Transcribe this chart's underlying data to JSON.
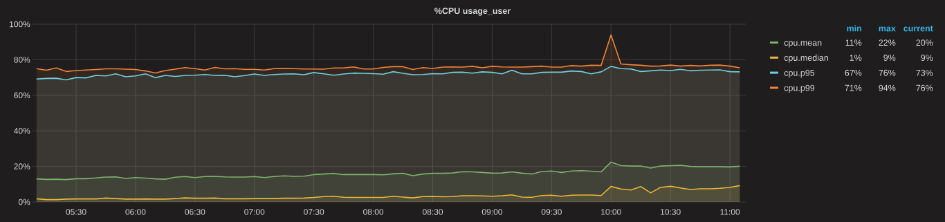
{
  "chart_data": {
    "type": "area",
    "title": "%CPU usage_user",
    "x": [
      5.1667,
      5.25,
      5.3333,
      5.4167,
      5.5,
      5.5833,
      5.6667,
      5.75,
      5.8333,
      5.9167,
      6,
      6.0833,
      6.1667,
      6.25,
      6.3333,
      6.4167,
      6.5,
      6.5833,
      6.6667,
      6.75,
      6.8333,
      6.9167,
      7,
      7.0833,
      7.1667,
      7.25,
      7.3333,
      7.4167,
      7.5,
      7.5833,
      7.6667,
      7.75,
      7.8333,
      7.9167,
      8,
      8.0833,
      8.1667,
      8.25,
      8.3333,
      8.4167,
      8.5,
      8.5833,
      8.6667,
      8.75,
      8.8333,
      8.9167,
      9,
      9.0833,
      9.1667,
      9.25,
      9.3333,
      9.4167,
      9.5,
      9.5833,
      9.6667,
      9.75,
      9.8333,
      9.9167,
      10,
      10.0833,
      10.1667,
      10.25,
      10.3333,
      10.4167,
      10.5,
      10.5833,
      10.6667,
      10.75,
      10.8333,
      10.9167,
      11,
      11.0833
    ],
    "series": [
      {
        "name": "cpu.mean",
        "color": "#7eb26d",
        "values": [
          13.0,
          12.7,
          12.8,
          12.6,
          13.1,
          13.1,
          13.5,
          14.0,
          14.1,
          13.2,
          13.7,
          13.4,
          13.0,
          12.8,
          13.9,
          14.3,
          13.7,
          14.3,
          14.4,
          14.1,
          14.0,
          14.0,
          14.3,
          13.7,
          14.3,
          14.7,
          14.4,
          14.5,
          15.4,
          15.7,
          16.0,
          15.4,
          15.4,
          15.4,
          15.4,
          15.3,
          15.8,
          16.1,
          14.8,
          15.7,
          16.1,
          16.1,
          16.3,
          17.0,
          16.9,
          16.6,
          16.2,
          16.3,
          16.9,
          16.2,
          15.7,
          17.1,
          17.4,
          16.6,
          17.4,
          17.6,
          17.3,
          16.9,
          22.4,
          20.4,
          20.2,
          20.2,
          19.1,
          20.2,
          20.4,
          20.6,
          20.0,
          19.8,
          19.8,
          19.8,
          19.7,
          20.1
        ]
      },
      {
        "name": "cpu.median",
        "color": "#eab839",
        "values": [
          1.8,
          1.3,
          1.3,
          1.6,
          1.7,
          1.7,
          1.7,
          2.2,
          1.9,
          1.6,
          1.6,
          1.7,
          1.6,
          1.6,
          1.9,
          2.3,
          2.1,
          2.1,
          2.2,
          1.8,
          1.8,
          1.8,
          1.9,
          1.9,
          1.9,
          2.1,
          2.1,
          2.2,
          2.5,
          3.0,
          3.2,
          2.6,
          2.5,
          2.5,
          2.5,
          2.5,
          3.2,
          2.7,
          2.3,
          3.0,
          3.1,
          2.9,
          3.0,
          3.5,
          3.5,
          3.4,
          3.2,
          3.5,
          4.0,
          2.7,
          2.6,
          3.6,
          3.8,
          3.2,
          3.8,
          3.9,
          3.9,
          3.6,
          8.7,
          7.3,
          6.7,
          8.7,
          5.1,
          8.2,
          8.8,
          7.9,
          7.0,
          7.4,
          7.4,
          7.7,
          8.2,
          9.2
        ]
      },
      {
        "name": "cpu.p95",
        "color": "#6ed0e0",
        "values": [
          69.1,
          69.5,
          69.6,
          68.7,
          70.0,
          69.8,
          71.2,
          70.9,
          72.1,
          70.4,
          70.9,
          72.1,
          69.9,
          71.2,
          70.6,
          71.2,
          71.3,
          71.7,
          71.2,
          71.3,
          70.4,
          71.1,
          72.0,
          71.2,
          71.7,
          72.0,
          72.1,
          71.6,
          72.8,
          72.1,
          71.3,
          72.0,
          72.5,
          72.4,
          72.2,
          71.9,
          73.3,
          72.4,
          71.6,
          71.7,
          72.2,
          72.1,
          72.9,
          73.0,
          72.5,
          73.2,
          72.9,
          72.1,
          74.1,
          72.1,
          72.1,
          72.9,
          73.0,
          73.0,
          73.7,
          73.4,
          72.1,
          73.2,
          76.3,
          75.0,
          74.8,
          73.4,
          73.8,
          74.2,
          73.9,
          74.6,
          73.8,
          74.1,
          74.2,
          74.3,
          73.3,
          73.2
        ]
      },
      {
        "name": "cpu.p99",
        "color": "#ef843c",
        "values": [
          75.0,
          74.1,
          75.4,
          73.4,
          73.9,
          74.2,
          74.5,
          74.9,
          74.9,
          74.7,
          74.5,
          73.7,
          72.6,
          73.9,
          74.7,
          75.6,
          75.0,
          74.2,
          75.7,
          74.9,
          75.0,
          74.6,
          74.6,
          74.2,
          75.0,
          75.1,
          75.0,
          74.8,
          74.8,
          74.7,
          75.4,
          75.4,
          76.0,
          74.8,
          74.8,
          75.7,
          76.1,
          76.1,
          74.5,
          75.6,
          75.1,
          75.9,
          76.0,
          75.9,
          76.3,
          75.5,
          76.3,
          76.0,
          75.9,
          75.9,
          76.1,
          76.4,
          75.9,
          75.9,
          76.7,
          76.4,
          76.9,
          76.8,
          94.0,
          77.6,
          77.2,
          76.9,
          76.4,
          76.5,
          77.0,
          76.4,
          76.8,
          76.5,
          76.9,
          77.0,
          76.4,
          75.5
        ]
      }
    ],
    "xlim": [
      5.1333,
      11.1333
    ],
    "xticks": [
      {
        "value": 5.5,
        "label": "05:30"
      },
      {
        "value": 6,
        "label": "06:00"
      },
      {
        "value": 6.5,
        "label": "06:30"
      },
      {
        "value": 7,
        "label": "07:00"
      },
      {
        "value": 7.5,
        "label": "07:30"
      },
      {
        "value": 8,
        "label": "08:00"
      },
      {
        "value": 8.5,
        "label": "08:30"
      },
      {
        "value": 9,
        "label": "09:00"
      },
      {
        "value": 9.5,
        "label": "09:30"
      },
      {
        "value": 10,
        "label": "10:00"
      },
      {
        "value": 10.5,
        "label": "10:30"
      },
      {
        "value": 11,
        "label": "11:00"
      }
    ],
    "ylim": [
      0,
      100
    ],
    "yticks": [
      {
        "value": 0,
        "label": "0%"
      },
      {
        "value": 20,
        "label": "20%"
      },
      {
        "value": 40,
        "label": "40%"
      },
      {
        "value": 60,
        "label": "60%"
      },
      {
        "value": 80,
        "label": "80%"
      },
      {
        "value": 100,
        "label": "100%"
      }
    ],
    "grid": true,
    "legend": "right",
    "annotations": [
      "min",
      "max",
      "current",
      "11%",
      "22%",
      "20%",
      "1%",
      "9%",
      "9%",
      "67%",
      "76%",
      "73%",
      "71%",
      "94%",
      "76%"
    ]
  }
}
